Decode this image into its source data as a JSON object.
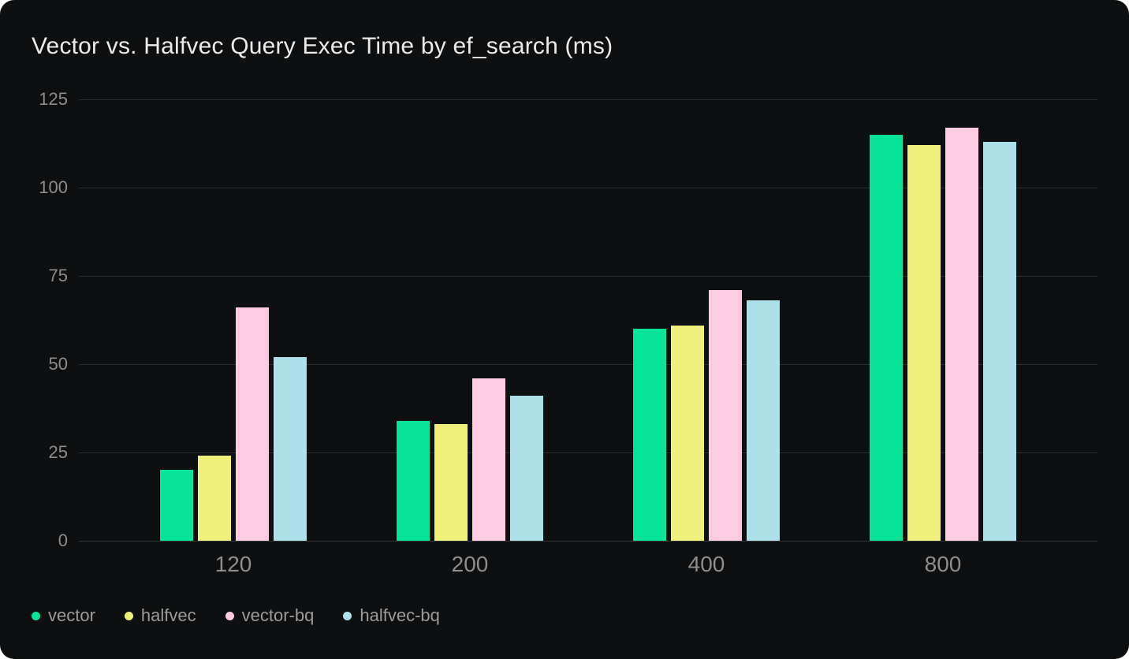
{
  "card": {
    "title": "Vector vs. Halfvec Query Exec Time by ef_search (ms)"
  },
  "colors": {
    "page_background": "#ffffff",
    "card_background": "#0e0f10",
    "gridline": "#2a2c2e",
    "title_text": "#ebebeb",
    "axis_text": "#8d8d8d",
    "legend_text": "#9c9c9c"
  },
  "chart_data": {
    "type": "bar",
    "title": "Vector vs. Halfvec Query Exec Time by ef_search (ms)",
    "xlabel": "",
    "ylabel": "",
    "categories": [
      "120",
      "200",
      "400",
      "800"
    ],
    "yticks": [
      0,
      25,
      50,
      75,
      100,
      125
    ],
    "ylim": [
      0,
      125
    ],
    "grid": true,
    "legend_position": "bottom",
    "series": [
      {
        "name": "vector",
        "color": "#08e39a",
        "values": [
          20,
          34,
          60,
          115
        ]
      },
      {
        "name": "halfvec",
        "color": "#eef07a",
        "values": [
          24,
          33,
          61,
          112
        ]
      },
      {
        "name": "vector-bq",
        "color": "#ffcce4",
        "values": [
          66,
          46,
          71,
          117
        ]
      },
      {
        "name": "halfvec-bq",
        "color": "#ade0e8",
        "values": [
          52,
          41,
          68,
          113
        ]
      }
    ]
  }
}
